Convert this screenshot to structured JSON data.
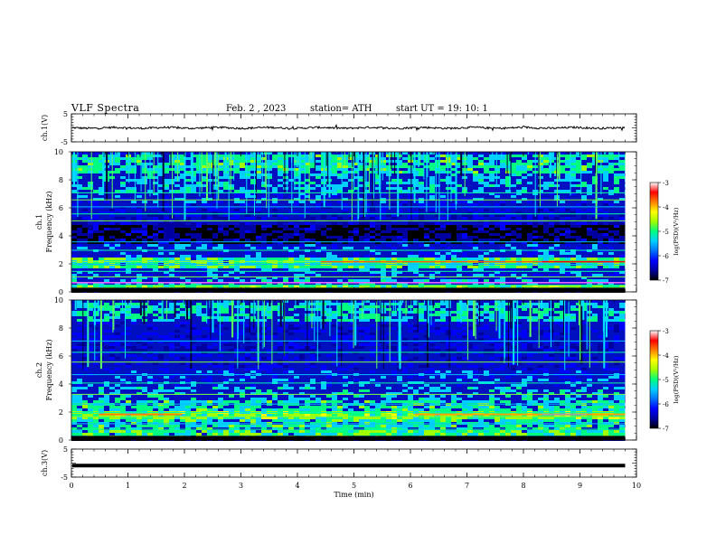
{
  "header": {
    "title": "VLF  Spectra",
    "date": "Feb. 2  , 2023",
    "station": "station= ATH",
    "start": "start  UT  =   19: 10: 1"
  },
  "chart_data": [
    {
      "type": "line",
      "name": "ch1-waveform",
      "ylabel": "ch.1(V)",
      "yticks": [
        "5",
        "-5"
      ],
      "ylim": [
        -5,
        5
      ],
      "xlim": [
        0,
        10
      ],
      "trace_level": 0,
      "trace_noise": 0.35
    },
    {
      "type": "heatmap",
      "name": "ch1-spectrogram",
      "ylabel_top": "ch.1",
      "ylabel": "Frequency  (kHz)",
      "yticks": [
        "0",
        "2",
        "4",
        "6",
        "8",
        "10"
      ],
      "ylim": [
        0,
        10
      ],
      "xlim": [
        0,
        9.8
      ],
      "colorbar": {
        "label": "log(PSD)(V²/Hz)",
        "ticks": [
          "-3",
          "-4",
          "-5",
          "-6",
          "-7"
        ],
        "range": [
          -7,
          -3
        ]
      },
      "colors": [
        "#000000",
        "#0000a0",
        "#0000ff",
        "#0070ff",
        "#00d0ff",
        "#00ff80",
        "#a0ff00",
        "#ffff00",
        "#ff8000",
        "#ff0000",
        "#ffffff"
      ]
    },
    {
      "type": "heatmap",
      "name": "ch2-spectrogram",
      "ylabel_top": "ch.2",
      "ylabel": "Frequency  (kHz)",
      "yticks": [
        "0",
        "2",
        "4",
        "6",
        "8",
        "10"
      ],
      "ylim": [
        0,
        10
      ],
      "xlim": [
        0,
        9.8
      ],
      "colorbar": {
        "label": "log(PSD)(V²/Hz)",
        "ticks": [
          "-3",
          "-4",
          "-5",
          "-6",
          "-7"
        ],
        "range": [
          -7,
          -3
        ]
      }
    },
    {
      "type": "line",
      "name": "ch3-waveform",
      "ylabel": "ch.3(V)",
      "yticks": [
        "5",
        "-5"
      ],
      "ylim": [
        -5,
        5
      ],
      "xlim": [
        0,
        10
      ],
      "trace_level": -0.9,
      "trace_noise": 0
    }
  ],
  "xaxis": {
    "label": "Time  (min)",
    "ticks": [
      "0",
      "1",
      "2",
      "3",
      "4",
      "5",
      "6",
      "7",
      "8",
      "9",
      "10"
    ],
    "range": [
      0,
      10
    ]
  }
}
